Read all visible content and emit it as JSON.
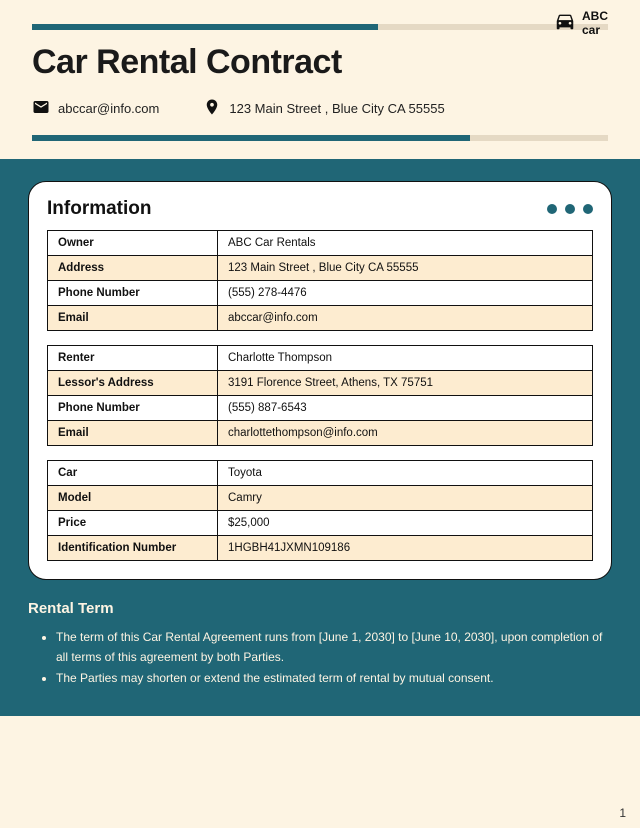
{
  "colors": {
    "teal": "#206676",
    "beige": "#e5d9c4",
    "cream_bg": "#fdf4e3",
    "row_cream": "#fdecd0",
    "text_dark": "#111111",
    "text_light": "#fdf4e3"
  },
  "header": {
    "top_rule": {
      "teal_pct": 60,
      "beige_pct": 40
    },
    "logo": {
      "name": "ABC",
      "sub": "car"
    },
    "title": "Car Rental Contract",
    "email": "abccar@info.com",
    "address": "123 Main Street , Blue City CA 55555",
    "bot_rule": {
      "teal_pct": 76,
      "beige_pct": 24
    }
  },
  "info": {
    "heading": "Information",
    "tables": [
      {
        "rows": [
          {
            "label": "Owner",
            "value": "ABC Car Rentals",
            "bg": "white"
          },
          {
            "label": "Address",
            "value": "123 Main Street , Blue City CA 55555",
            "bg": "cream"
          },
          {
            "label": "Phone Number",
            "value": "(555) 278-4476",
            "bg": "white"
          },
          {
            "label": "Email",
            "value": "abccar@info.com",
            "bg": "cream"
          }
        ]
      },
      {
        "rows": [
          {
            "label": "Renter",
            "value": "Charlotte Thompson",
            "bg": "white"
          },
          {
            "label": "Lessor's Address",
            "value": "3191 Florence Street, Athens, TX 75751",
            "bg": "cream"
          },
          {
            "label": "Phone Number",
            "value": "(555) 887-6543",
            "bg": "white"
          },
          {
            "label": "Email",
            "value": "charlottethompson@info.com",
            "bg": "cream"
          }
        ]
      },
      {
        "rows": [
          {
            "label": "Car",
            "value": "Toyota",
            "bg": "white"
          },
          {
            "label": "Model",
            "value": "Camry",
            "bg": "cream"
          },
          {
            "label": "Price",
            "value": "$25,000",
            "bg": "white"
          },
          {
            "label": "Identification Number",
            "value": "1HGBH41JXMN109186",
            "bg": "cream"
          }
        ]
      }
    ]
  },
  "rental_term": {
    "heading": "Rental Term",
    "bullets": [
      "The term of this Car Rental Agreement runs from [June 1, 2030] to [June 10, 2030], upon completion of all terms of this agreement by both Parties.",
      "The Parties may shorten or extend the estimated term of rental by mutual consent."
    ]
  },
  "page_number": "1"
}
